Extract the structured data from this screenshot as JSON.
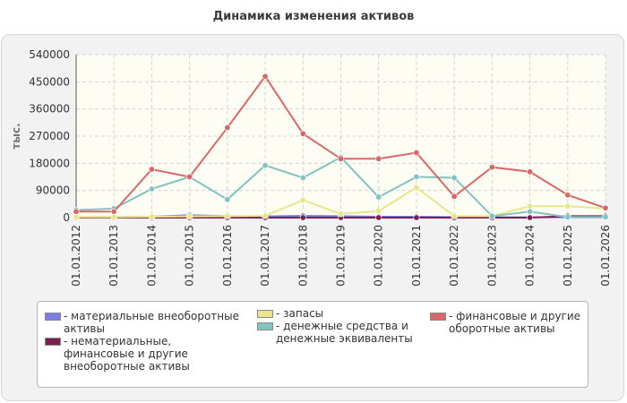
{
  "chart_data": {
    "type": "line",
    "title": "Динамика изменения активов",
    "ylabel": "тыс.",
    "xlabel": "",
    "categories": [
      "01.01.2012",
      "01.01.2013",
      "01.01.2014",
      "01.01.2015",
      "01.01.2016",
      "01.01.2017",
      "01.01.2018",
      "01.01.2019",
      "01.01.2020",
      "01.01.2021",
      "01.01.2022",
      "01.01.2023",
      "01.01.2024",
      "01.01.2025",
      "01.01.2026"
    ],
    "yticks": [
      "540000",
      "450000",
      "360000",
      "270000",
      "180000",
      "90000",
      "0"
    ],
    "ylim": [
      0,
      540000
    ],
    "grid": true,
    "legend_position": "bottom",
    "series": [
      {
        "name": "- материальные внеоборотные\nактивы",
        "color": "#7b7bea",
        "values": [
          2000,
          2000,
          3000,
          8000,
          5000,
          4000,
          6000,
          5000,
          3000,
          3000,
          2000,
          1000,
          1000,
          1000,
          1000
        ]
      },
      {
        "name": "- нематериальные,\nфинансовые и другие\nвнеоборотные активы",
        "color": "#7a1f52",
        "values": [
          0,
          0,
          0,
          0,
          0,
          0,
          0,
          0,
          0,
          0,
          0,
          0,
          0,
          5000,
          5000
        ]
      },
      {
        "name": "- запасы",
        "color": "#e8e68a",
        "values": [
          2000,
          2000,
          3000,
          4000,
          5000,
          6000,
          58000,
          12000,
          22000,
          100000,
          5000,
          5000,
          38000,
          38000,
          30000
        ]
      },
      {
        "name": "- денежные средства и\nденежные эквиваленты",
        "color": "#82c3c0",
        "values": [
          25000,
          30000,
          95000,
          135000,
          60000,
          173000,
          132000,
          200000,
          68000,
          135000,
          132000,
          5000,
          20000,
          2000,
          2000
        ]
      },
      {
        "name": "- финансовые и другие\nоборотные активы",
        "color": "#d96767",
        "values": [
          20000,
          20000,
          160000,
          135000,
          298000,
          468000,
          278000,
          195000,
          195000,
          215000,
          70000,
          167000,
          152000,
          75000,
          32000
        ]
      }
    ]
  }
}
